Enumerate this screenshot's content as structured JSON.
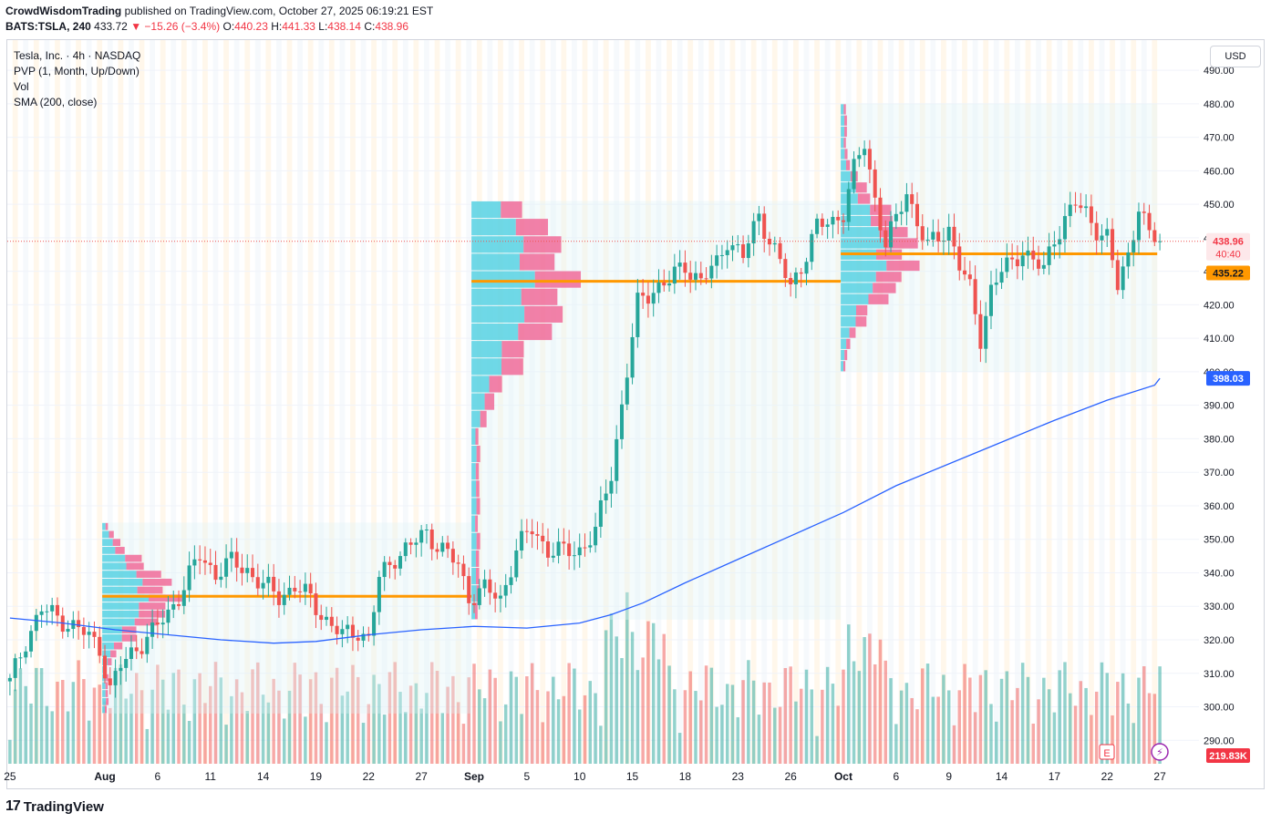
{
  "header": {
    "publisher": "CrowdWisdomTrading",
    "published_text": "published on TradingView.com, October 27, 2025 06:19:21 EST",
    "symbol": "BATS:TSLA, 240",
    "last": "433.72",
    "change": "−15.26 (−3.4%)",
    "o_label": "O:",
    "o": "440.23",
    "h_label": "H:",
    "h": "441.33",
    "l_label": "L:",
    "l": "438.14",
    "c_label": "C:",
    "c": "438.96"
  },
  "legend": {
    "title": "Tesla, Inc. · 4h · NASDAQ",
    "pvp": "PVP (1, Month, Up/Down)",
    "vol": "Vol",
    "sma": "SMA (200, close)"
  },
  "currency_button": "USD",
  "footer": {
    "logo_glyph": "17",
    "brand": "TradingView"
  },
  "chart_data": {
    "type": "candlestick",
    "title": "Tesla, Inc. · 4h · NASDAQ",
    "y_axis": {
      "ylim": [
        283,
        499
      ],
      "ticks": [
        490,
        480,
        470,
        460,
        450,
        440,
        430,
        420,
        410,
        400,
        390,
        380,
        370,
        360,
        350,
        340,
        330,
        320,
        310,
        300,
        290
      ],
      "tick_labels": [
        "490.00",
        "480.00",
        "470.00",
        "460.00",
        "450.00",
        "440.00",
        "430.00",
        "420.00",
        "410.00",
        "400.00",
        "390.00",
        "380.00",
        "370.00",
        "360.00",
        "350.00",
        "340.00",
        "330.00",
        "320.00",
        "310.00",
        "300.00",
        "290.00"
      ]
    },
    "x_axis": {
      "labels": [
        "25",
        "Aug",
        "6",
        "11",
        "14",
        "19",
        "22",
        "27",
        "Sep",
        "5",
        "10",
        "15",
        "18",
        "23",
        "26",
        "Oct",
        "6",
        "9",
        "14",
        "17",
        "22",
        "27"
      ],
      "label_index": [
        0,
        18,
        28,
        38,
        48,
        58,
        68,
        78,
        88,
        98,
        108,
        118,
        128,
        138,
        148,
        158,
        168,
        178,
        188,
        198,
        208,
        218
      ]
    },
    "price_badges": {
      "last": "438.96",
      "countdown": "40:40",
      "poc": "435.22",
      "sma": "398.03",
      "volume": "219.83K"
    },
    "colors": {
      "up": "#26a69a",
      "down": "#ef5350",
      "sma": "#2962ff",
      "poc": "#ff9800",
      "profile_up": "#4dd0e1",
      "profile_down": "#f06292"
    },
    "sma_200": [
      [
        0,
        326.5
      ],
      [
        10,
        325.0
      ],
      [
        20,
        323.0
      ],
      [
        30,
        321.5
      ],
      [
        40,
        320.0
      ],
      [
        50,
        319.0
      ],
      [
        58,
        319.5
      ],
      [
        68,
        321.5
      ],
      [
        78,
        323.0
      ],
      [
        88,
        324.0
      ],
      [
        98,
        323.5
      ],
      [
        108,
        325.0
      ],
      [
        114,
        327.5
      ],
      [
        120,
        331.0
      ],
      [
        128,
        337.0
      ],
      [
        138,
        344.0
      ],
      [
        148,
        351.0
      ],
      [
        158,
        358.0
      ],
      [
        168,
        366.0
      ],
      [
        178,
        372.5
      ],
      [
        188,
        379.0
      ],
      [
        198,
        385.5
      ],
      [
        208,
        391.5
      ],
      [
        217,
        396.0
      ],
      [
        218,
        398.03
      ]
    ],
    "candles_anchor_closes": [
      [
        0,
        307
      ],
      [
        3,
        320
      ],
      [
        6,
        329
      ],
      [
        10,
        326
      ],
      [
        14,
        322
      ],
      [
        17,
        318
      ],
      [
        19,
        305
      ],
      [
        21,
        312
      ],
      [
        24,
        318
      ],
      [
        27,
        322
      ],
      [
        30,
        328
      ],
      [
        33,
        336
      ],
      [
        36,
        345
      ],
      [
        39,
        340
      ],
      [
        42,
        343
      ],
      [
        45,
        341
      ],
      [
        48,
        336
      ],
      [
        51,
        333
      ],
      [
        54,
        336
      ],
      [
        57,
        332
      ],
      [
        60,
        326
      ],
      [
        63,
        321
      ],
      [
        66,
        323
      ],
      [
        68,
        320
      ],
      [
        70,
        338
      ],
      [
        73,
        345
      ],
      [
        76,
        348
      ],
      [
        79,
        352
      ],
      [
        82,
        347
      ],
      [
        85,
        342
      ],
      [
        87,
        333
      ],
      [
        90,
        335
      ],
      [
        93,
        332
      ],
      [
        96,
        347
      ],
      [
        99,
        353
      ],
      [
        102,
        347
      ],
      [
        105,
        346
      ],
      [
        108,
        347
      ],
      [
        111,
        352
      ],
      [
        114,
        370
      ],
      [
        116,
        390
      ],
      [
        119,
        420
      ],
      [
        122,
        425
      ],
      [
        125,
        427
      ],
      [
        128,
        432
      ],
      [
        131,
        427
      ],
      [
        134,
        432
      ],
      [
        136,
        440
      ],
      [
        139,
        434
      ],
      [
        142,
        447
      ],
      [
        145,
        436
      ],
      [
        148,
        425
      ],
      [
        150,
        432
      ],
      [
        153,
        443
      ],
      [
        156,
        445
      ],
      [
        158,
        448
      ],
      [
        160,
        460
      ],
      [
        162,
        468
      ],
      [
        164,
        452
      ],
      [
        166,
        438
      ],
      [
        168,
        445
      ],
      [
        170,
        454
      ],
      [
        172,
        445
      ],
      [
        174,
        437
      ],
      [
        176,
        440
      ],
      [
        178,
        443
      ],
      [
        180,
        432
      ],
      [
        182,
        424
      ],
      [
        184,
        410
      ],
      [
        186,
        425
      ],
      [
        188,
        430
      ],
      [
        190,
        432
      ],
      [
        192,
        437
      ],
      [
        194,
        433
      ],
      [
        196,
        430
      ],
      [
        198,
        440
      ],
      [
        200,
        446
      ],
      [
        202,
        450
      ],
      [
        204,
        447
      ],
      [
        206,
        443
      ],
      [
        208,
        440
      ],
      [
        210,
        425
      ],
      [
        212,
        435
      ],
      [
        214,
        450
      ],
      [
        216,
        440
      ],
      [
        218,
        438.96
      ]
    ],
    "volume_range_k": [
      0,
      480
    ],
    "volume_profiles": [
      {
        "period": "Aug",
        "poc": 333,
        "range": [
          298,
          355
        ]
      },
      {
        "period": "Sep",
        "poc": 427,
        "range": [
          326,
          451
        ]
      },
      {
        "period": "Oct",
        "poc": 435.22,
        "range": [
          400,
          480
        ]
      }
    ]
  }
}
